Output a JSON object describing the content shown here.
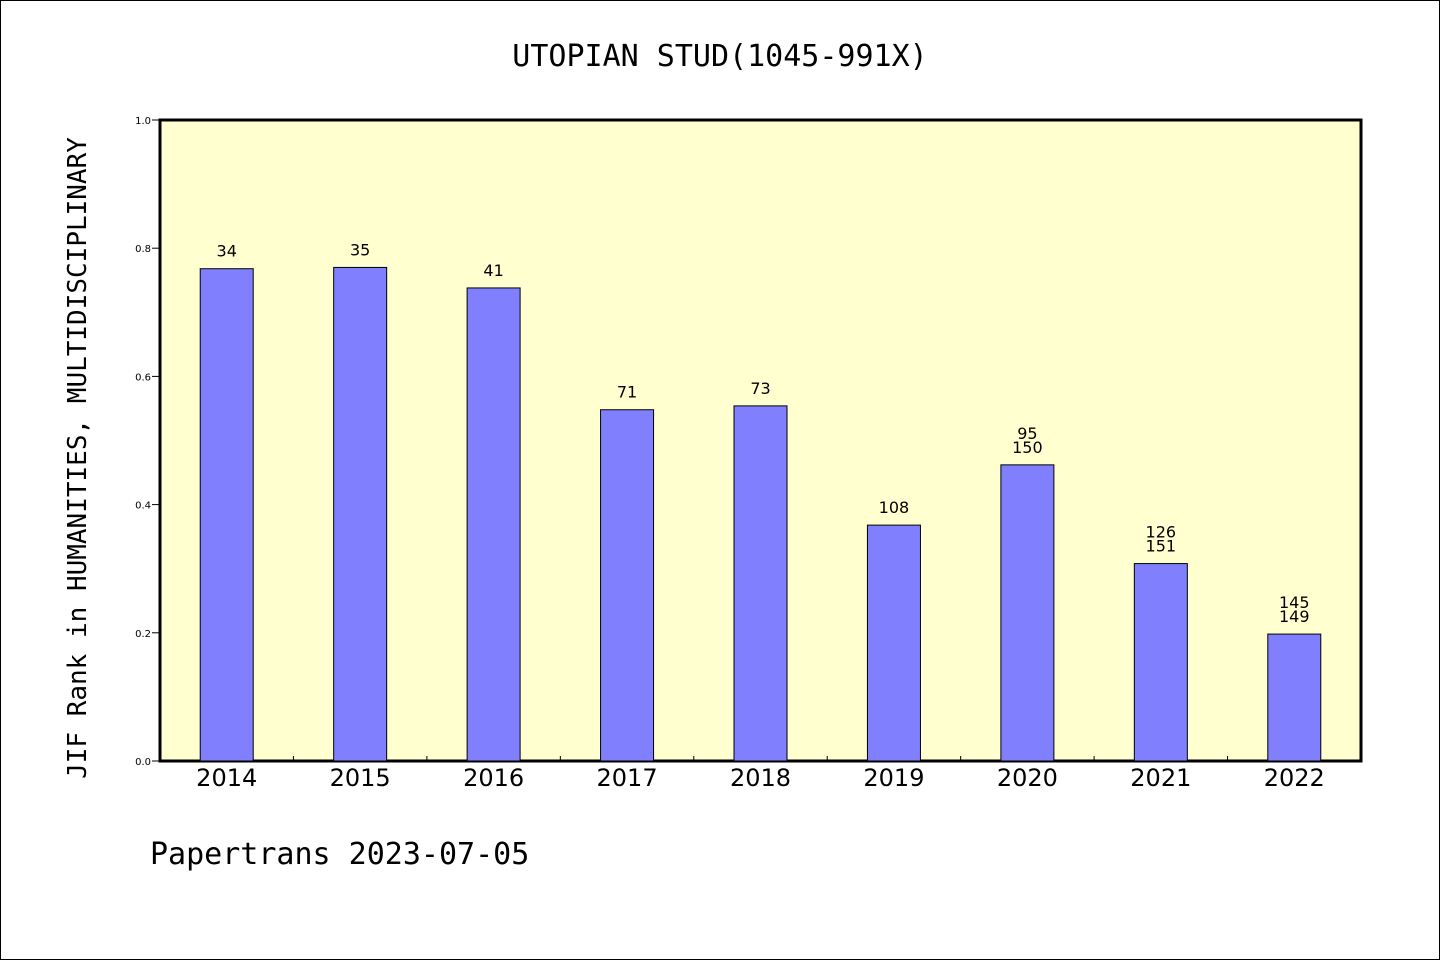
{
  "chart_data": {
    "type": "bar",
    "title": "UTOPIAN STUD(1045-991X)",
    "ylabel": "JIF Rank in HUMANITIES, MULTIDISCIPLINARY",
    "xlabel": "",
    "ylim": [
      0,
      1.0
    ],
    "yticks": [
      "0.0",
      "0.2",
      "0.4",
      "0.6",
      "0.8",
      "1.0"
    ],
    "categories": [
      "2014",
      "2015",
      "2016",
      "2017",
      "2018",
      "2019",
      "2020",
      "2021",
      "2022"
    ],
    "values": [
      0.768,
      0.77,
      0.738,
      0.548,
      0.554,
      0.368,
      0.462,
      0.308,
      0.198
    ],
    "labels": [
      [
        "34"
      ],
      [
        "35"
      ],
      [
        "41"
      ],
      [
        "71"
      ],
      [
        "73"
      ],
      [
        "108"
      ],
      [
        "95",
        "150"
      ],
      [
        "126",
        "151"
      ],
      [
        "145",
        "149"
      ]
    ],
    "grid": false,
    "colors": {
      "plot_background": "#ffffd0",
      "bar_fill": "#8080ff",
      "bar_stroke": "#000000"
    }
  },
  "footer": {
    "credit": "Papertrans 2023-07-05"
  }
}
